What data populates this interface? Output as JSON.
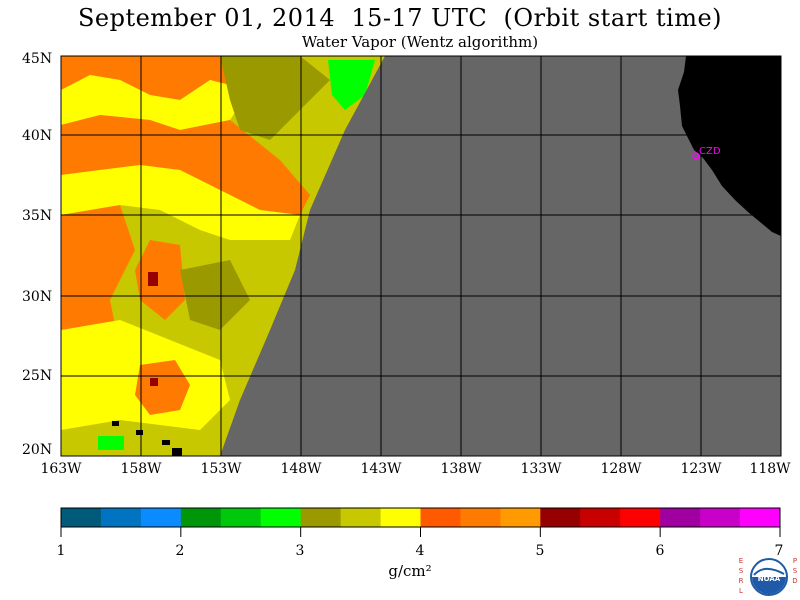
{
  "header": {
    "title": "September 01, 2014  15-17 UTC  (Orbit start time)",
    "subtitle": "Water Vapor (Wentz algorithm)"
  },
  "map": {
    "lat_ticks": [
      "45N",
      "40N",
      "35N",
      "30N",
      "25N",
      "20N"
    ],
    "lon_ticks": [
      "163W",
      "158W",
      "153W",
      "148W",
      "143W",
      "138W",
      "133W",
      "128W",
      "123W",
      "118W"
    ],
    "station_label": "CZD",
    "colors": {
      "no_data": "#666666",
      "land": "#000000",
      "grid": "#000000",
      "station": "#ff00ff"
    }
  },
  "colorbar": {
    "ticks": [
      "1",
      "2",
      "3",
      "4",
      "5",
      "6",
      "7"
    ],
    "unit": "g/cm²",
    "colors": [
      "#005a7a",
      "#0074c0",
      "#0a8cff",
      "#00960a",
      "#00c80a",
      "#00ff00",
      "#9a9a00",
      "#c8c800",
      "#ffff00",
      "#ff5a00",
      "#ff7a00",
      "#ff9a00",
      "#960000",
      "#c80000",
      "#ff0000",
      "#a000a0",
      "#c800c8",
      "#ff00ff"
    ]
  },
  "logo": {
    "left_letters": "ESRL",
    "right_letters": "PSD",
    "center_text": "NOAA"
  }
}
